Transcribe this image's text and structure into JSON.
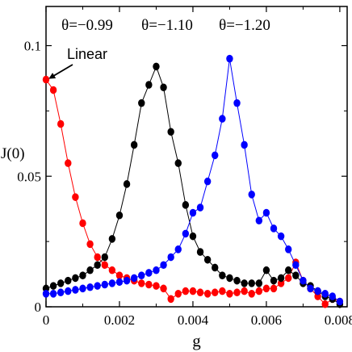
{
  "chart_data": {
    "type": "line",
    "xlabel": "g",
    "ylabel": "J(0)",
    "xlim": [
      0,
      0.0082
    ],
    "ylim": [
      0,
      0.115
    ],
    "x_ticks": [
      0,
      0.002,
      0.004,
      0.006,
      0.008
    ],
    "x_tick_labels": [
      "0",
      "0.002",
      "0.004",
      "0.006",
      "0.008"
    ],
    "y_ticks": [
      0,
      0.05,
      0.1
    ],
    "y_tick_labels": [
      "0",
      "0.05",
      "0.1"
    ],
    "grid": false,
    "legend": "none",
    "annotation": {
      "text": "Linear",
      "points_to": {
        "x": 0,
        "y": 0.087
      }
    },
    "series": [
      {
        "name": "θ=−0.99",
        "color": "#ff0000",
        "x": [
          0,
          0.0002,
          0.0004,
          0.0006,
          0.0008,
          0.001,
          0.0012,
          0.0014,
          0.0016,
          0.0018,
          0.002,
          0.0022,
          0.0024,
          0.0026,
          0.0028,
          0.003,
          0.0032,
          0.0034,
          0.0036,
          0.0038,
          0.004,
          0.0042,
          0.0044,
          0.0046,
          0.0048,
          0.005,
          0.0052,
          0.0054,
          0.0056,
          0.0058,
          0.006,
          0.0062,
          0.0064,
          0.0066,
          0.0068,
          0.007,
          0.0072,
          0.0074,
          0.0076,
          0.0078,
          0.008
        ],
        "y": [
          0.087,
          0.083,
          0.07,
          0.055,
          0.042,
          0.032,
          0.024,
          0.019,
          0.016,
          0.014,
          0.012,
          0.011,
          0.01,
          0.009,
          0.0085,
          0.008,
          0.007,
          0.003,
          0.005,
          0.006,
          0.006,
          0.0055,
          0.005,
          0.0055,
          0.006,
          0.005,
          0.0055,
          0.006,
          0.005,
          0.006,
          0.007,
          0.007,
          0.009,
          0.011,
          0.017,
          0.01,
          0.007,
          0.004,
          0.001,
          0.003,
          0.002
        ]
      },
      {
        "name": "θ=−1.10",
        "color": "#000000",
        "x": [
          0,
          0.0002,
          0.0004,
          0.0006,
          0.0008,
          0.001,
          0.0012,
          0.0014,
          0.0016,
          0.0018,
          0.002,
          0.0022,
          0.0024,
          0.0026,
          0.0028,
          0.003,
          0.0032,
          0.0034,
          0.0036,
          0.0038,
          0.004,
          0.0042,
          0.0044,
          0.0046,
          0.0048,
          0.005,
          0.0052,
          0.0054,
          0.0056,
          0.0058,
          0.006,
          0.0062,
          0.0064,
          0.0066,
          0.0068,
          0.007,
          0.0072,
          0.0074,
          0.0076,
          0.0078,
          0.008
        ],
        "y": [
          0.007,
          0.008,
          0.009,
          0.01,
          0.011,
          0.012,
          0.014,
          0.016,
          0.019,
          0.026,
          0.035,
          0.047,
          0.062,
          0.078,
          0.085,
          0.092,
          0.084,
          0.067,
          0.055,
          0.039,
          0.027,
          0.021,
          0.018,
          0.015,
          0.012,
          0.011,
          0.01,
          0.009,
          0.009,
          0.009,
          0.014,
          0.01,
          0.011,
          0.014,
          0.012,
          0.009,
          0.008,
          0.006,
          0.004,
          0.003,
          0.001
        ]
      },
      {
        "name": "θ=−1.20",
        "color": "#0000ff",
        "x": [
          0,
          0.0002,
          0.0004,
          0.0006,
          0.0008,
          0.001,
          0.0012,
          0.0014,
          0.0016,
          0.0018,
          0.002,
          0.0022,
          0.0024,
          0.0026,
          0.0028,
          0.003,
          0.0032,
          0.0034,
          0.0036,
          0.0038,
          0.004,
          0.0042,
          0.0044,
          0.0046,
          0.0048,
          0.005,
          0.0052,
          0.0054,
          0.0056,
          0.0058,
          0.006,
          0.0062,
          0.0064,
          0.0066,
          0.0068,
          0.007,
          0.0072,
          0.0074,
          0.0076,
          0.0078,
          0.008
        ],
        "y": [
          0.005,
          0.005,
          0.0055,
          0.006,
          0.0065,
          0.007,
          0.0075,
          0.008,
          0.0085,
          0.009,
          0.0095,
          0.01,
          0.011,
          0.012,
          0.013,
          0.014,
          0.016,
          0.019,
          0.022,
          0.028,
          0.036,
          0.038,
          0.048,
          0.058,
          0.072,
          0.095,
          0.078,
          0.062,
          0.043,
          0.033,
          0.036,
          0.03,
          0.027,
          0.022,
          0.016,
          0.01,
          0.007,
          0.006,
          0.005,
          0.004,
          0.002
        ]
      }
    ]
  }
}
